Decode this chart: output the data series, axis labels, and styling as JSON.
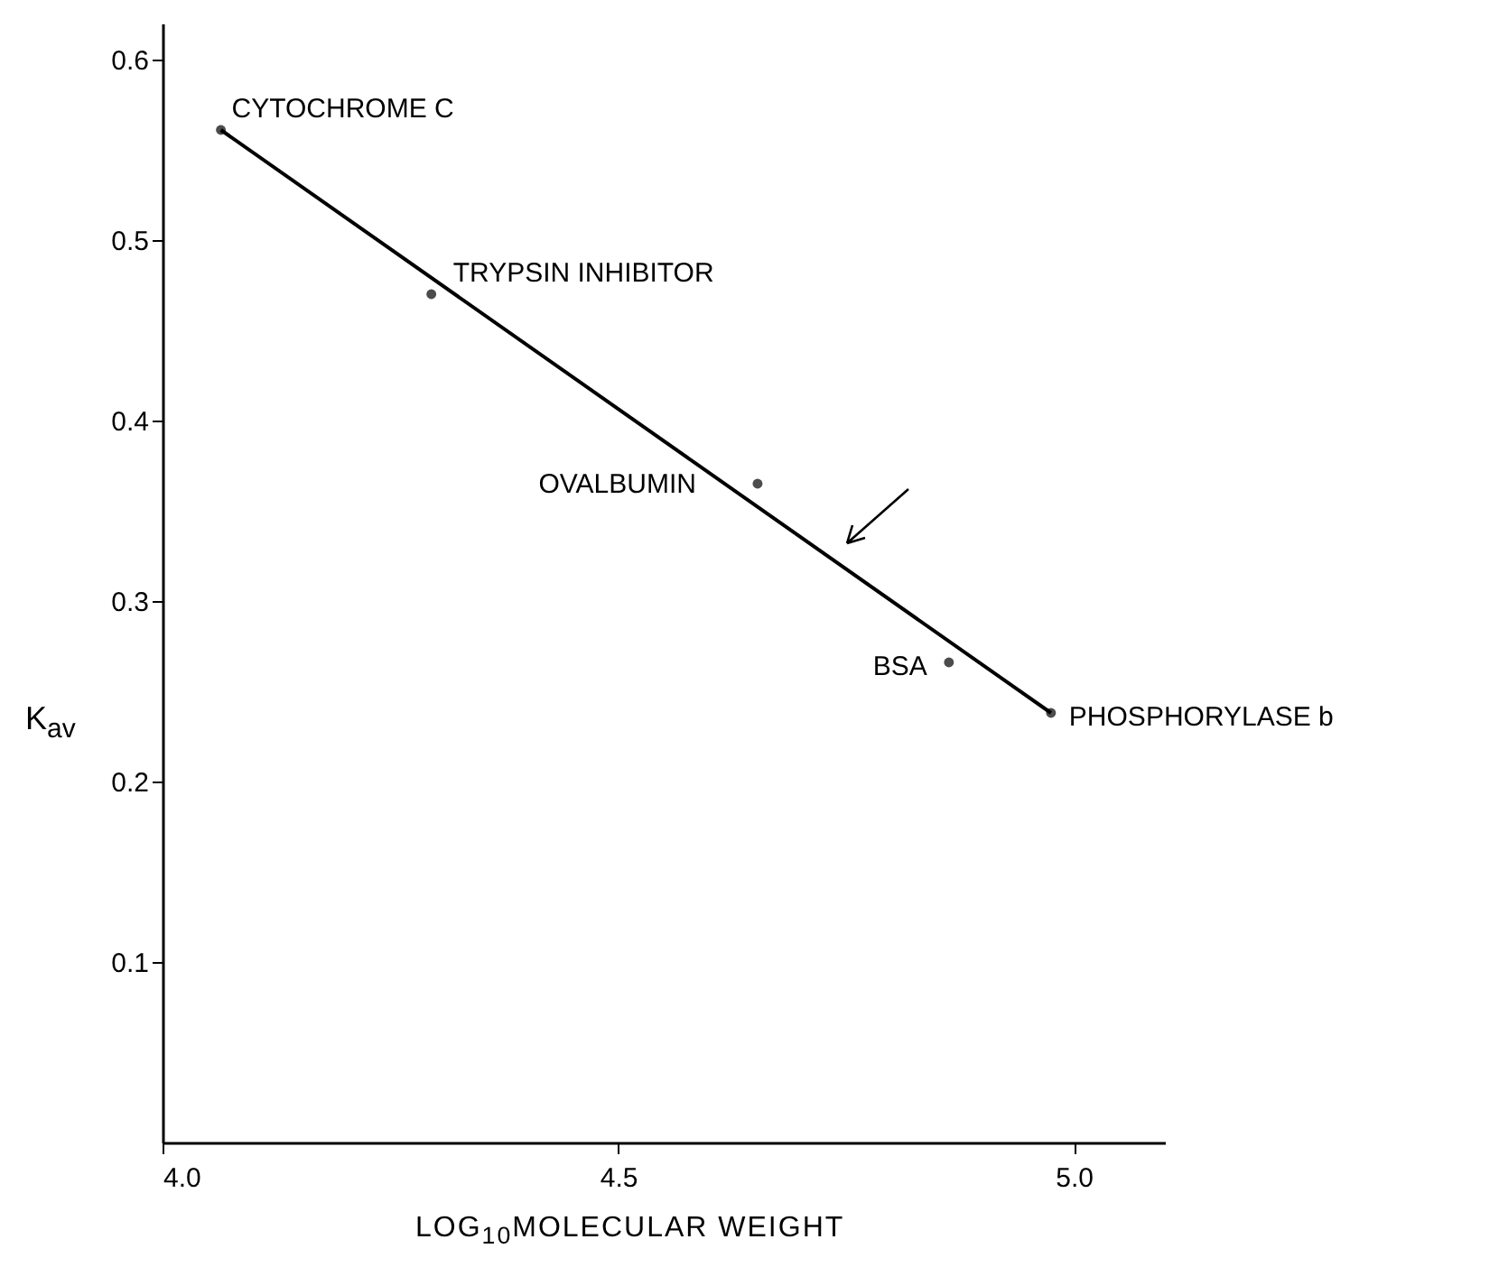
{
  "chart_data": {
    "type": "scatter",
    "xlabel": "LOG$_{10}$MOLECULAR WEIGHT",
    "ylabel": "K$_{av}$",
    "x": [
      4.064,
      4.295,
      4.653,
      4.863,
      4.975
    ],
    "series": [
      {
        "color": "#000000",
        "marker": "circle",
        "values": [
          0.561,
          0.47,
          0.365,
          0.266,
          0.238
        ]
      },
      {
        "type": "line",
        "color": "#000000",
        "x": [
          4.064,
          4.975
        ],
        "values": [
          0.561,
          0.238
        ]
      }
    ],
    "annotations": [
      {
        "text": "CYTOCHROME C",
        "x": 4.064,
        "y": 0.561
      },
      {
        "text": "TRYPSIN INHIBITOR",
        "x": 4.295,
        "y": 0.47
      },
      {
        "text": "OVALBUMIN",
        "x": 4.653,
        "y": 0.365
      },
      {
        "text": "BSA",
        "x": 4.863,
        "y": 0.266
      },
      {
        "text": "PHOSPHORYLASE b",
        "x": 4.975,
        "y": 0.238
      }
    ],
    "xlim": [
      4.0,
      5.1
    ],
    "ylim": [
      0,
      0.62
    ],
    "xticks": [
      {
        "value": 4.0,
        "label": "4.0"
      },
      4.5,
      {
        "value": 5.0,
        "label": "5.0"
      }
    ],
    "yticks": [
      0.1,
      0.2,
      0.3,
      0.4,
      0.5,
      0.6
    ],
    "grid": false,
    "line_style": "solid"
  }
}
